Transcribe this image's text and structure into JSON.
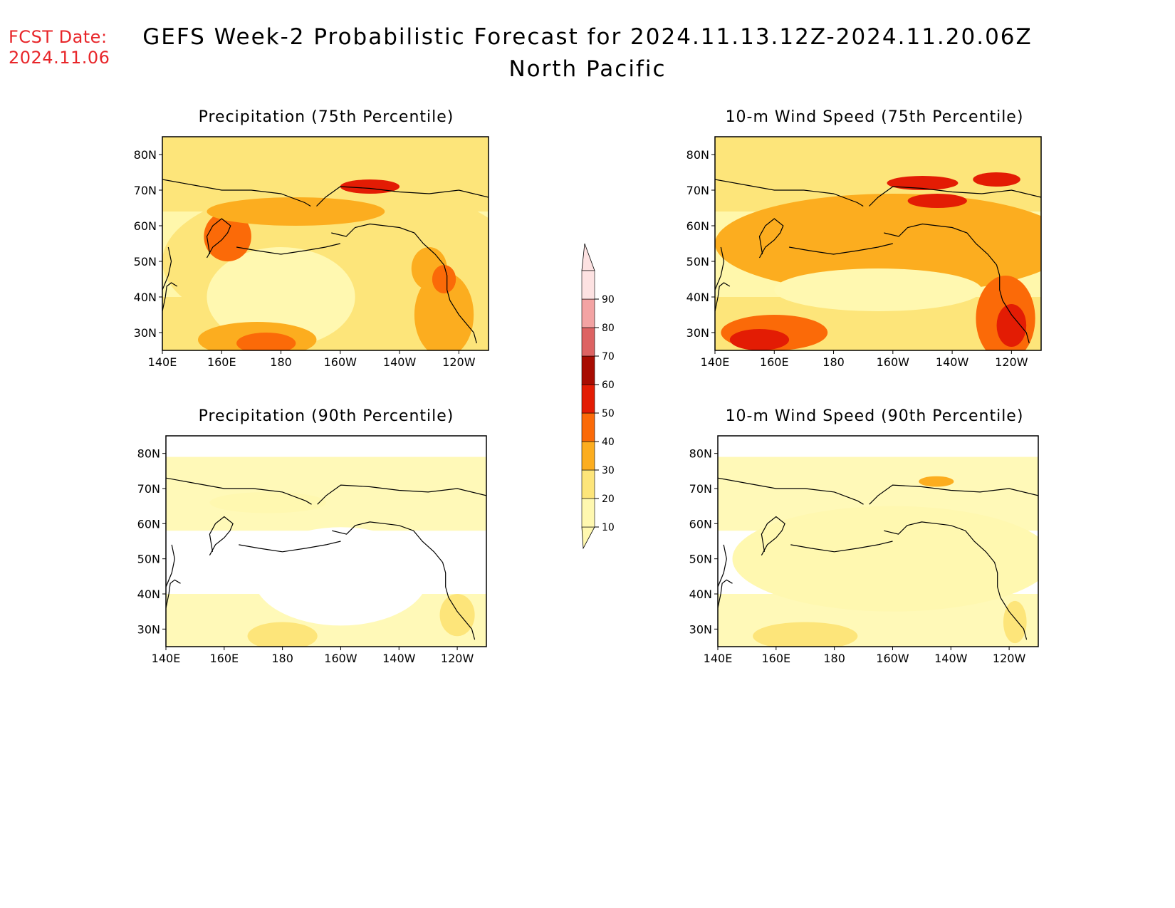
{
  "header": {
    "fcst_label": "FCST Date:",
    "fcst_date": "2024.11.06",
    "title": "GEFS Week-2 Probabilistic Forecast for 2024.11.13.12Z-2024.11.20.06Z",
    "subtitle": "North Pacific"
  },
  "panels": [
    {
      "id": "precip75",
      "title": "Precipitation (75th Percentile)"
    },
    {
      "id": "wind75",
      "title": "10-m Wind Speed (75th Percentile)"
    },
    {
      "id": "precip90",
      "title": "Precipitation (90th Percentile)"
    },
    {
      "id": "wind90",
      "title": "10-m Wind Speed (90th Percentile)"
    }
  ],
  "axes": {
    "lon_ticks": [
      "140E",
      "160E",
      "180",
      "160W",
      "140W",
      "120W"
    ],
    "lat_ticks": [
      "80N",
      "70N",
      "60N",
      "50N",
      "40N",
      "30N"
    ]
  },
  "colorbar": {
    "levels": [
      "10",
      "20",
      "30",
      "40",
      "50",
      "60",
      "70",
      "80",
      "90"
    ],
    "colors": [
      "#fff8b0",
      "#fde57a",
      "#fcad1f",
      "#fb6a08",
      "#e31c04",
      "#a80c02",
      "#dd6363",
      "#f3a3a3",
      "#fde2e2"
    ]
  }
}
